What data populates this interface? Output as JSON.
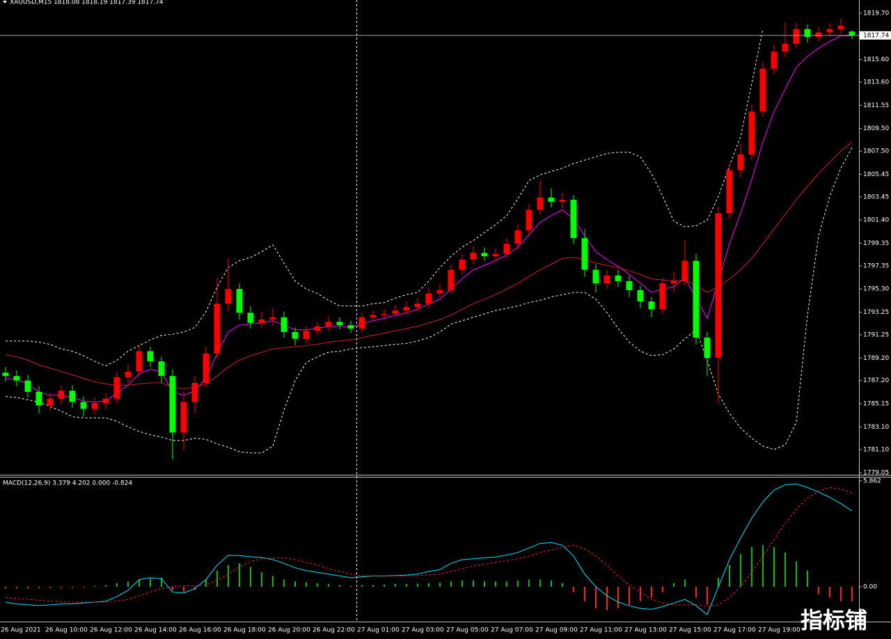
{
  "chart_data": [
    {
      "type": "candlestick",
      "title": "XAUUSD,M15  1818.08 1818.19 1817.39 1817.74",
      "categories": [
        "26 Aug 2021",
        null,
        null,
        null,
        "26 Aug 10:00",
        null,
        null,
        null,
        "26 Aug 12:00",
        null,
        null,
        null,
        "26 Aug 14:00",
        null,
        null,
        null,
        "26 Aug 16:00",
        null,
        null,
        null,
        "26 Aug 18:00",
        null,
        null,
        null,
        "26 Aug 20:00",
        null,
        null,
        null,
        "26 Aug 22:00",
        null,
        null,
        null,
        "27 Aug 01:00",
        null,
        null,
        null,
        "27 Aug 03:00",
        null,
        null,
        null,
        "27 Aug 05:00",
        null,
        null,
        null,
        "27 Aug 07:00",
        null,
        null,
        null,
        "27 Aug 09:00",
        null,
        null,
        null,
        "27 Aug 11:00",
        null,
        null,
        null,
        "27 Aug 13:00",
        null,
        null,
        null,
        "27 Aug 15:00",
        null,
        null,
        null,
        "27 Aug 17:00",
        null,
        null,
        null,
        "27 Aug 19:00",
        null,
        null,
        null,
        null,
        null,
        null,
        null,
        null
      ],
      "open": [
        1787.9,
        1787.6,
        1787.2,
        1786.2,
        1785.0,
        1785.6,
        1786.3,
        1785.3,
        1784.7,
        1785.2,
        1785.6,
        1787.5,
        1788.0,
        1789.8,
        1788.9,
        1787.6,
        1782.6,
        1785.3,
        1787.0,
        1789.6,
        1794.0,
        1795.3,
        1793.2,
        1792.3,
        1792.6,
        1792.8,
        1791.5,
        1790.9,
        1791.6,
        1792.0,
        1792.4,
        1792.1,
        1791.8,
        1792.8,
        1793.0,
        1793.1,
        1793.4,
        1793.7,
        1794.0,
        1794.9,
        1795.2,
        1797.0,
        1797.9,
        1798.5,
        1798.2,
        1798.4,
        1799.3,
        1800.5,
        1802.3,
        1803.4,
        1803.0,
        1803.2,
        1799.8,
        1797.0,
        1795.8,
        1796.5,
        1796.0,
        1795.2,
        1794.2,
        1793.5,
        1795.8,
        1796.0,
        1797.8,
        1791.0,
        1789.2,
        1802.0,
        1805.8,
        1807.2,
        1811.0,
        1814.8,
        1816.3,
        1817.0,
        1818.3,
        1817.6,
        1818.0,
        1818.3,
        1818.08
      ],
      "high": [
        1788.4,
        1788.1,
        1787.7,
        1786.7,
        1786.1,
        1786.8,
        1786.8,
        1785.8,
        1785.7,
        1786.1,
        1788.0,
        1788.6,
        1790.4,
        1790.2,
        1789.3,
        1788.2,
        1786.2,
        1787.6,
        1790.2,
        1796.3,
        1798.0,
        1795.8,
        1793.8,
        1793.3,
        1793.6,
        1793.3,
        1791.9,
        1792.0,
        1792.4,
        1792.9,
        1792.8,
        1792.5,
        1793.2,
        1793.4,
        1793.5,
        1793.9,
        1794.2,
        1794.5,
        1795.4,
        1795.8,
        1797.5,
        1798.4,
        1799.1,
        1799.0,
        1798.9,
        1799.8,
        1801.0,
        1802.8,
        1804.9,
        1804.2,
        1803.8,
        1803.6,
        1800.6,
        1797.5,
        1797.0,
        1797.0,
        1796.5,
        1795.6,
        1794.6,
        1796.3,
        1796.8,
        1799.6,
        1798.4,
        1791.5,
        1802.6,
        1806.4,
        1808.2,
        1811.6,
        1815.4,
        1816.9,
        1818.9,
        1818.8,
        1818.7,
        1818.5,
        1818.8,
        1819.2,
        1818.19
      ],
      "low": [
        1787.1,
        1786.7,
        1785.7,
        1784.3,
        1784.5,
        1785.1,
        1784.8,
        1784.0,
        1784.2,
        1784.7,
        1785.2,
        1787.0,
        1787.6,
        1788.4,
        1787.0,
        1780.2,
        1781.0,
        1784.3,
        1786.6,
        1789.2,
        1793.3,
        1792.6,
        1791.8,
        1791.9,
        1792.0,
        1791.0,
        1790.3,
        1790.5,
        1791.2,
        1791.6,
        1791.7,
        1791.4,
        1791.5,
        1792.5,
        1792.7,
        1792.8,
        1793.0,
        1793.3,
        1793.6,
        1794.5,
        1794.9,
        1796.6,
        1797.5,
        1797.8,
        1797.8,
        1798.0,
        1798.9,
        1800.1,
        1801.9,
        1802.5,
        1802.4,
        1799.3,
        1796.4,
        1795.0,
        1795.3,
        1795.5,
        1794.6,
        1793.6,
        1792.8,
        1793.1,
        1795.0,
        1795.6,
        1790.4,
        1787.6,
        1785.2,
        1801.5,
        1805.2,
        1806.7,
        1810.5,
        1814.3,
        1815.8,
        1816.6,
        1817.1,
        1817.2,
        1817.6,
        1817.9,
        1817.39
      ],
      "close": [
        1787.6,
        1787.2,
        1786.2,
        1785.0,
        1785.6,
        1786.3,
        1785.3,
        1784.7,
        1785.2,
        1785.6,
        1787.5,
        1788.0,
        1789.8,
        1788.9,
        1787.6,
        1782.6,
        1785.3,
        1787.0,
        1789.6,
        1794.0,
        1795.3,
        1793.2,
        1792.3,
        1792.6,
        1792.8,
        1791.5,
        1790.9,
        1791.6,
        1792.0,
        1792.4,
        1792.1,
        1791.8,
        1792.8,
        1793.0,
        1793.1,
        1793.4,
        1793.7,
        1794.0,
        1794.9,
        1795.2,
        1797.0,
        1797.9,
        1798.5,
        1798.2,
        1798.4,
        1799.3,
        1800.5,
        1802.3,
        1803.4,
        1803.0,
        1803.2,
        1799.8,
        1797.0,
        1795.8,
        1796.5,
        1796.0,
        1795.2,
        1794.2,
        1793.5,
        1795.8,
        1796.0,
        1797.8,
        1791.0,
        1789.2,
        1802.0,
        1805.8,
        1807.2,
        1811.0,
        1814.8,
        1816.3,
        1817.0,
        1818.3,
        1817.6,
        1818.0,
        1818.3,
        1818.6,
        1817.74
      ],
      "up_color": "#ff0000",
      "down_color": "#00ff00",
      "overlays": [
        {
          "color": "#ffffff",
          "dashed": true,
          "values": [
            1790.7,
            1790.7,
            1790.7,
            1790.6,
            1790.4,
            1790.0,
            1789.8,
            1789.4,
            1788.9,
            1788.5,
            1789.0,
            1789.8,
            1790.3,
            1790.8,
            1791.2,
            1791.3,
            1791.5,
            1791.9,
            1793.3,
            1795.5,
            1797.2,
            1797.8,
            1798.1,
            1798.6,
            1799.2,
            1797.6,
            1796.0,
            1795.3,
            1794.9,
            1794.3,
            1793.8,
            1793.8,
            1793.8,
            1794.0,
            1794.1,
            1794.5,
            1794.8,
            1795.0,
            1796.0,
            1797.2,
            1798.2,
            1799.0,
            1799.6,
            1800.3,
            1801.0,
            1801.8,
            1803.3,
            1804.9,
            1805.4,
            1805.7,
            1806.0,
            1806.4,
            1806.7,
            1807.0,
            1807.3,
            1807.4,
            1807.4,
            1807.0,
            1805.5,
            1803.5,
            1801.3,
            1800.8,
            1800.9,
            1801.4,
            1803.5,
            1806.2,
            1808.8,
            1813.5,
            1818.3,
            null,
            null,
            null,
            null,
            null,
            null,
            null,
            null
          ]
        },
        {
          "color": "#ffffff",
          "dashed": true,
          "values": [
            1785.8,
            1785.7,
            1785.5,
            1785.3,
            1784.9,
            1784.5,
            1784.0,
            1783.9,
            1783.9,
            1783.9,
            1783.6,
            1783.1,
            1782.7,
            1782.4,
            1782.2,
            1781.9,
            1781.9,
            1782.1,
            1782.0,
            1781.6,
            1781.3,
            1780.9,
            1780.8,
            1780.8,
            1781.4,
            1784.6,
            1787.2,
            1788.8,
            1789.3,
            1789.7,
            1789.8,
            1790.0,
            1790.1,
            1790.2,
            1790.3,
            1790.4,
            1790.5,
            1790.7,
            1791.0,
            1791.5,
            1792.2,
            1792.5,
            1792.8,
            1793.1,
            1793.4,
            1793.6,
            1793.8,
            1794.1,
            1794.3,
            1794.6,
            1794.8,
            1795.0,
            1795.0,
            1794.4,
            1793.2,
            1791.8,
            1790.6,
            1789.8,
            1789.4,
            1789.5,
            1790.0,
            1790.9,
            1791.7,
            1789.0,
            1786.0,
            1784.3,
            1783.0,
            1782.1,
            1781.4,
            1781.1,
            1781.5,
            1783.5,
            1793.0,
            1800.0,
            1803.5,
            1806.0,
            1807.8
          ]
        },
        {
          "color": "#ff00ff",
          "dashed": false,
          "values": [
            1787.4,
            1787.3,
            1786.9,
            1786.2,
            1785.9,
            1785.9,
            1785.7,
            1785.4,
            1785.3,
            1785.4,
            1786.1,
            1786.8,
            1787.8,
            1788.2,
            1788.0,
            1786.2,
            1785.9,
            1786.3,
            1787.4,
            1789.6,
            1791.5,
            1792.1,
            1792.2,
            1792.3,
            1792.5,
            1792.1,
            1791.7,
            1791.7,
            1791.8,
            1792.0,
            1792.0,
            1791.9,
            1792.2,
            1792.5,
            1792.7,
            1793.0,
            1793.2,
            1793.5,
            1794.0,
            1794.4,
            1795.3,
            1796.2,
            1797.0,
            1797.4,
            1797.8,
            1798.3,
            1799.0,
            1800.1,
            1801.2,
            1801.8,
            1802.3,
            1801.5,
            1800.0,
            1798.6,
            1797.9,
            1797.3,
            1796.6,
            1795.8,
            1795.0,
            1795.3,
            1795.5,
            1796.3,
            1794.5,
            1792.7,
            1796.0,
            1799.3,
            1802.0,
            1805.0,
            1808.3,
            1811.0,
            1813.0,
            1814.9,
            1815.9,
            1816.6,
            1817.2,
            1817.7,
            1817.7
          ]
        },
        {
          "color": "#d02020",
          "dashed": false,
          "values": [
            1789.5,
            1789.3,
            1789.0,
            1788.6,
            1788.3,
            1788.0,
            1787.7,
            1787.4,
            1787.1,
            1786.9,
            1786.8,
            1786.8,
            1786.9,
            1787.0,
            1787.0,
            1786.6,
            1786.5,
            1786.6,
            1786.9,
            1787.6,
            1788.4,
            1789.0,
            1789.4,
            1789.7,
            1790.0,
            1790.1,
            1790.2,
            1790.3,
            1790.4,
            1790.6,
            1790.7,
            1790.8,
            1791.0,
            1791.2,
            1791.4,
            1791.6,
            1791.8,
            1792.0,
            1792.3,
            1792.6,
            1793.0,
            1793.5,
            1794.0,
            1794.4,
            1794.8,
            1795.3,
            1795.8,
            1796.4,
            1797.0,
            1797.5,
            1798.0,
            1798.1,
            1797.9,
            1797.6,
            1797.4,
            1797.2,
            1796.9,
            1796.6,
            1796.2,
            1796.1,
            1796.0,
            1796.1,
            1795.6,
            1795.0,
            1795.5,
            1796.2,
            1797.0,
            1798.0,
            1799.3,
            1800.6,
            1801.9,
            1803.2,
            1804.4,
            1805.5,
            1806.5,
            1807.5,
            1808.3
          ]
        }
      ],
      "current_price": 1817.74,
      "ylim": [
        1778.87,
        1820.87
      ],
      "yticks": [
        {
          "value": 1819.7,
          "label": "1819.70"
        },
        {
          "value": 1815.6,
          "label": "1815.60"
        },
        {
          "value": 1813.6,
          "label": "1813.60"
        },
        1811.55,
        {
          "value": 1809.5,
          "label": "1809.50"
        },
        {
          "value": 1807.5,
          "label": "1807.50"
        },
        1805.45,
        1803.45,
        {
          "value": 1801.4,
          "label": "1801.40"
        },
        1799.35,
        1797.35,
        {
          "value": 1795.3,
          "label": "1795.30"
        },
        1793.25,
        1791.25,
        {
          "value": 1789.2,
          "label": "1789.20"
        },
        {
          "value": 1787.2,
          "label": "1787.20"
        },
        1785.15,
        {
          "value": 1783.1,
          "label": "1783.10"
        },
        {
          "value": 1781.1,
          "label": "1781.10"
        },
        1779.05
      ]
    },
    {
      "type": "macd",
      "title": "MACD(12,26,9) 3.379 4.202 0.000 -0.824",
      "series": [
        {
          "color": "#00e5ff",
          "dashed": false,
          "values": [
            -0.85,
            -0.95,
            -1.0,
            -1.04,
            -1.0,
            -0.95,
            -0.95,
            -0.9,
            -0.85,
            -0.8,
            -0.55,
            -0.2,
            0.4,
            0.5,
            0.45,
            -0.3,
            -0.35,
            -0.1,
            0.4,
            1.2,
            1.74,
            1.72,
            1.66,
            1.62,
            1.5,
            1.3,
            1.05,
            0.9,
            0.8,
            0.7,
            0.6,
            0.5,
            0.55,
            0.6,
            0.6,
            0.62,
            0.65,
            0.7,
            0.85,
            0.95,
            1.3,
            1.5,
            1.55,
            1.6,
            1.65,
            1.75,
            1.9,
            2.15,
            2.4,
            2.45,
            2.3,
            1.7,
            0.7,
            0.0,
            -0.5,
            -0.85,
            -1.05,
            -1.2,
            -1.25,
            -1.1,
            -0.9,
            -0.7,
            -1.05,
            -1.54,
            0.0,
            1.5,
            2.7,
            3.8,
            4.7,
            5.35,
            5.65,
            5.7,
            5.5,
            5.25,
            4.95,
            4.6,
            4.2
          ]
        },
        {
          "color": "#ff2020",
          "dashed": true,
          "values": [
            -0.6,
            -0.65,
            -0.7,
            -0.75,
            -0.8,
            -0.82,
            -0.85,
            -0.85,
            -0.85,
            -0.85,
            -0.8,
            -0.7,
            -0.5,
            -0.3,
            -0.1,
            0.0,
            0.05,
            0.05,
            0.1,
            0.35,
            0.7,
            1.1,
            1.4,
            1.55,
            1.6,
            1.6,
            1.5,
            1.35,
            1.2,
            1.0,
            0.85,
            0.7,
            0.6,
            0.6,
            0.6,
            0.6,
            0.6,
            0.62,
            0.65,
            0.7,
            0.85,
            1.0,
            1.15,
            1.25,
            1.35,
            1.45,
            1.55,
            1.7,
            1.9,
            2.05,
            2.2,
            2.3,
            2.1,
            1.7,
            1.2,
            0.6,
            0.1,
            -0.3,
            -0.7,
            -0.9,
            -1.0,
            -1.0,
            -1.0,
            -1.1,
            -1.0,
            -0.6,
            0.0,
            0.8,
            1.7,
            2.6,
            3.5,
            4.3,
            4.9,
            5.3,
            5.5,
            5.4,
            5.2
          ]
        }
      ],
      "histogram": {
        "pos_color": "#00c000",
        "neg_color": "#ff2020",
        "values": [
          -0.1,
          -0.1,
          -0.1,
          -0.08,
          -0.08,
          -0.06,
          -0.05,
          -0.04,
          0.05,
          0.1,
          0.2,
          0.3,
          0.4,
          0.45,
          0.5,
          -0.2,
          -0.3,
          -0.2,
          0.4,
          0.9,
          1.2,
          1.3,
          1.1,
          0.8,
          0.6,
          0.4,
          0.3,
          0.25,
          0.2,
          0.15,
          0.1,
          0.05,
          0.1,
          0.1,
          0.12,
          0.15,
          0.15,
          0.18,
          0.2,
          0.22,
          0.3,
          0.35,
          0.35,
          0.3,
          0.3,
          0.3,
          0.35,
          0.4,
          0.4,
          0.35,
          0.2,
          -0.3,
          -0.8,
          -1.2,
          -1.3,
          -1.2,
          -1.0,
          -0.8,
          -0.6,
          -0.3,
          0.2,
          0.4,
          -0.6,
          -1.0,
          0.5,
          1.2,
          1.8,
          2.2,
          2.3,
          2.2,
          1.9,
          1.4,
          0.9,
          -0.4,
          -0.6,
          -0.8,
          -0.8
        ]
      },
      "ylim": [
        -1.93,
        6.05
      ],
      "yticks": [
        5.862,
        {
          "value": 0,
          "label": "0.00"
        }
      ]
    }
  ],
  "watermark": "指标铺"
}
